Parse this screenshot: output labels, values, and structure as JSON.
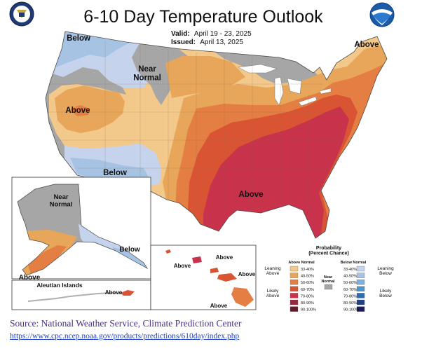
{
  "title": "6-10 Day Temperature Outlook",
  "valid": {
    "label": "Valid:",
    "value": "April 19 - 23, 2025"
  },
  "issued": {
    "label": "Issued:",
    "value": "April 13, 2025"
  },
  "colors": {
    "above_33_40": "#f3c88b",
    "above_40_50": "#e8a65a",
    "above_50_60": "#e47e42",
    "above_60_70": "#d85433",
    "above_70_80": "#c8324a",
    "above_80_90": "#992541",
    "above_90_100": "#5e1a27",
    "near_normal": "#a6a6a6",
    "below_33_40": "#c6d3ec",
    "below_40_50": "#a6c3e4",
    "below_50_60": "#7fb1de",
    "below_60_70": "#4d95cf",
    "below_70_80": "#2b6db3",
    "below_80_90": "#1f3f86",
    "below_90_100": "#1b1a5e"
  },
  "map_labels": {
    "below_nw": "Below",
    "near_normal": "Near\nNormal",
    "above_ne": "Above",
    "above_w": "Above",
    "below_sw": "Below",
    "above_se": "Above",
    "alaska_near": "Near\nNormal",
    "alaska_below": "Below",
    "alaska_above": "Above",
    "aleutian_title": "Aleutian Islands",
    "aleutian_above": "Above",
    "hawaii_above_1": "Above",
    "hawaii_above_2": "Above",
    "hawaii_above_3": "Above",
    "hawaii_above_4": "Above"
  },
  "legend": {
    "title": "Probability\n(Percent Chance)",
    "above_header": "Above Normal",
    "below_header": "Below Normal",
    "near_header": "Near\nNormal",
    "leaning_above": "Leaning\nAbove",
    "likely_above": "Likely\nAbove",
    "leaning_below": "Leaning\nBelow",
    "likely_below": "Likely\nBelow",
    "ranges": [
      "33-40%",
      "40-50%",
      "50-60%",
      "60-70%",
      "70-80%",
      "80-90%",
      "90-100%"
    ]
  },
  "source_text": "Source: National Weather Service, Climate Prediction Center",
  "source_url": "https://www.cpc.ncep.noaa.gov/products/predictions/610day/index.php"
}
